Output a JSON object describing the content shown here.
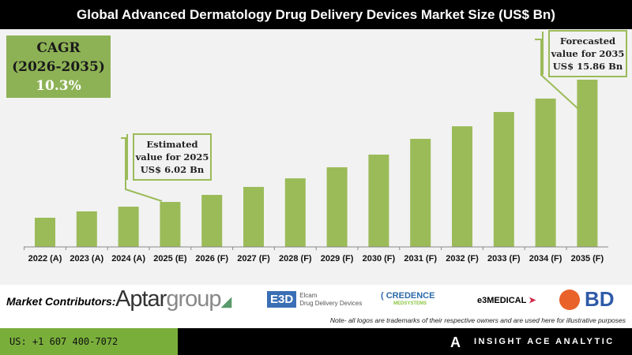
{
  "title": "Global Advanced Dermatology Drug Delivery Devices Market Size (US$ Bn)",
  "cagr": {
    "label": "CAGR",
    "period": "(2026-2035)",
    "value": "10.3%"
  },
  "callouts": {
    "estimated": [
      "Estimated",
      "value for 2025",
      "US$ 6.02 Bn"
    ],
    "forecast": [
      "Forecasted",
      "value for 2035",
      "US$ 15.86 Bn"
    ]
  },
  "chart_data": {
    "type": "bar",
    "title": "Global Advanced Dermatology Drug Delivery Devices Market Size (US$ Bn)",
    "categories": [
      "2022 (A)",
      "2023 (A)",
      "2024 (A)",
      "2025 (E)",
      "2026 (F)",
      "2027 (F)",
      "2028 (F)",
      "2029 (F)",
      "2030 (F)",
      "2031 (F)",
      "2032 (F)",
      "2033 (F)",
      "2034 (F)",
      "2035 (F)"
    ],
    "values": [
      4.75,
      5.26,
      5.64,
      6.02,
      6.59,
      7.23,
      7.92,
      8.81,
      9.83,
      11.1,
      12.11,
      13.26,
      14.34,
      15.86
    ],
    "ylim": [
      2.4,
      16.5
    ],
    "grid": false,
    "color": "#9bbb59"
  },
  "contributors": {
    "label": "Market Contributors:",
    "aptar": [
      "Aptar",
      "group"
    ],
    "elcam": {
      "mark": "E3D",
      "name1": "Elcam",
      "name2": "Drug Delivery Devices"
    },
    "credence": {
      "name": "CREDENCE",
      "sub": "MEDSYSTEMS"
    },
    "e3medical": "e3MEDICAL",
    "bd": "BD",
    "note": "Note- all logos are trademarks of their respective owners and are used here for illustrative purposes"
  },
  "footer": {
    "phone": "US: +1 607 400-7072",
    "brand": "INSIGHT ACE ANALYTIC",
    "brand_mark": "A"
  }
}
